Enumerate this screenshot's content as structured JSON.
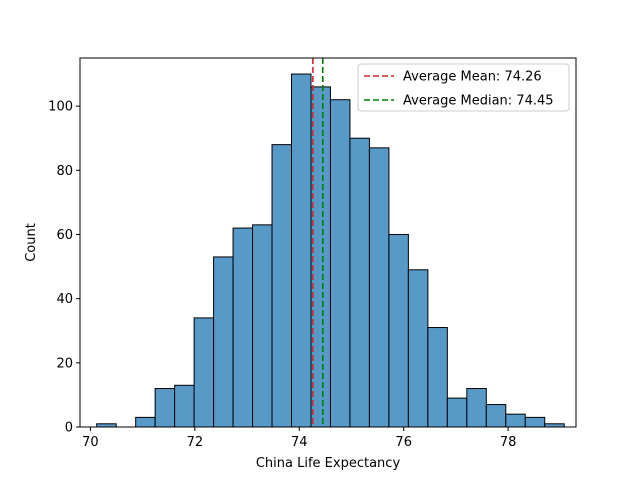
{
  "chart_data": {
    "type": "bar",
    "title": "",
    "xlabel": "China Life Expectancy",
    "ylabel": "Count",
    "xlim": [
      69.8,
      79.3
    ],
    "ylim": [
      0,
      115
    ],
    "grid": false,
    "legend_placement": "top-right",
    "bar_color": "#5799c7",
    "bar_edge_color": "#000000",
    "bin_width": 0.3731,
    "bins_start": 70.12,
    "counts": [
      1,
      0,
      3,
      12,
      13,
      34,
      53,
      62,
      63,
      88,
      110,
      106,
      102,
      90,
      87,
      60,
      49,
      31,
      9,
      12,
      7,
      4,
      3,
      1
    ],
    "x_ticks": [
      70,
      72,
      74,
      76,
      78
    ],
    "y_ticks": [
      0,
      20,
      40,
      60,
      80,
      100
    ],
    "reference_lines": [
      {
        "name": "Average Mean: 74.26",
        "x": 74.26,
        "color": "#d62728",
        "style": "dashed"
      },
      {
        "name": "Average Median: 74.45",
        "x": 74.45,
        "color": "#008000",
        "style": "dashed"
      }
    ]
  }
}
